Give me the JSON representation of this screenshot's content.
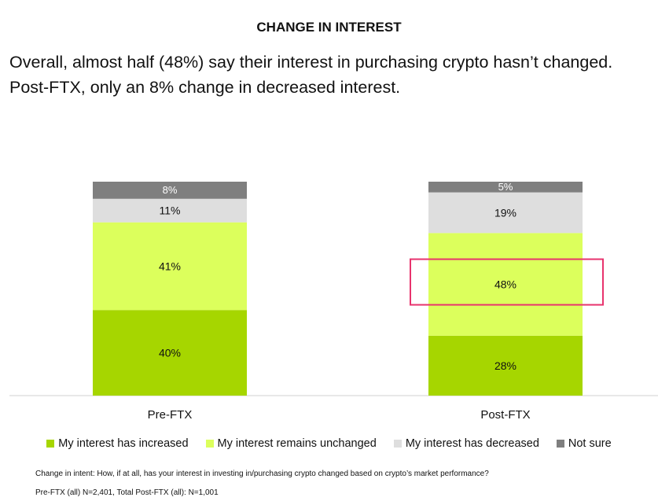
{
  "header": {
    "title": "CHANGE IN INTEREST",
    "subtitle_line1": "Overall, almost half (48%) say their interest in purchasing crypto hasn’t changed.",
    "subtitle_line2": "Post-FTX, only an 8% change in decreased interest."
  },
  "chart_data": {
    "type": "bar",
    "stacked": true,
    "categories": [
      "Pre-FTX",
      "Post-FTX"
    ],
    "series": [
      {
        "name": "My interest has increased",
        "values": [
          40,
          28
        ],
        "labels": [
          "40%",
          "28%"
        ],
        "color": "#a6d600"
      },
      {
        "name": "My interest remains unchanged",
        "values": [
          41,
          48
        ],
        "labels": [
          "41%",
          "48%"
        ],
        "color": "#dcff5c"
      },
      {
        "name": "My interest has decreased",
        "values": [
          11,
          19
        ],
        "labels": [
          "11%",
          "19%"
        ],
        "color": "#dedede"
      },
      {
        "name": "Not sure",
        "values": [
          8,
          5
        ],
        "labels": [
          "8%",
          "5%"
        ],
        "color": "#7f7f7f"
      }
    ],
    "highlight": {
      "category": "Post-FTX",
      "series": "My interest remains unchanged",
      "color": "#e8336d"
    },
    "legend_position": "bottom",
    "grid": false
  },
  "footnotes": {
    "question": "Change in intent: How, if at all, has your interest in investing in/purchasing crypto changed based on crypto’s market performance?",
    "sample": "Pre-FTX (all) N=2,401, Total Post-FTX (all): N=1,001"
  }
}
